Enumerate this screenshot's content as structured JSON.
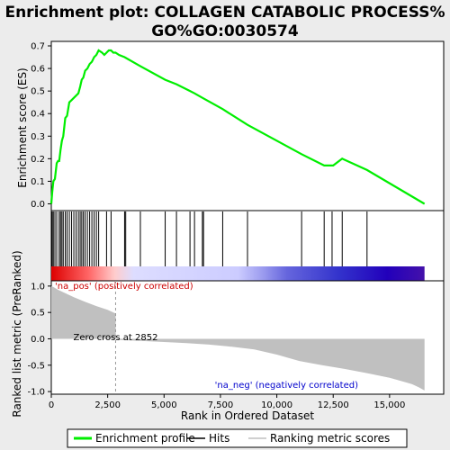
{
  "title_line1": "Enrichment plot: COLLAGEN CATABOLIC PROCESS%",
  "title_line2": "GO%GO:0030574",
  "colors": {
    "es_line": "#00ee00",
    "hit": "#000000",
    "metric_fill": "#c0c0c0",
    "pos_text": "#cc0000",
    "neg_text": "#0000cc",
    "zero_line": "#999999"
  },
  "chart_data": [
    {
      "type": "line",
      "name": "enrichment-score-panel",
      "ylabel": "Enrichment score (ES)",
      "xlim": [
        0,
        17400
      ],
      "ylim": [
        -0.03,
        0.72
      ],
      "yticks": [
        0.0,
        0.1,
        0.2,
        0.3,
        0.4,
        0.5,
        0.6,
        0.7
      ],
      "ytick_labels": [
        "0.0",
        "0.1",
        "0.2",
        "0.3",
        "0.4",
        "0.5",
        "0.6",
        "0.7"
      ],
      "grid": false,
      "series": [
        {
          "name": "Enrichment profile",
          "x": [
            0,
            40,
            90,
            160,
            240,
            300,
            350,
            410,
            470,
            530,
            620,
            700,
            800,
            900,
            1000,
            1100,
            1200,
            1280,
            1350,
            1420,
            1500,
            1600,
            1700,
            1800,
            1900,
            2000,
            2100,
            2250,
            2350,
            2450,
            2550,
            2650,
            2750,
            2850,
            3000,
            3250,
            3950,
            5050,
            5550,
            6150,
            6350,
            6700,
            7600,
            8700,
            11100,
            12100,
            12500,
            12900,
            14000,
            16550
          ],
          "y": [
            0.0,
            0.05,
            0.1,
            0.11,
            0.18,
            0.19,
            0.19,
            0.24,
            0.28,
            0.3,
            0.38,
            0.39,
            0.45,
            0.46,
            0.47,
            0.48,
            0.49,
            0.52,
            0.55,
            0.56,
            0.59,
            0.6,
            0.62,
            0.63,
            0.65,
            0.66,
            0.68,
            0.67,
            0.66,
            0.67,
            0.68,
            0.68,
            0.67,
            0.67,
            0.66,
            0.65,
            0.61,
            0.55,
            0.53,
            0.5,
            0.49,
            0.47,
            0.42,
            0.35,
            0.22,
            0.17,
            0.17,
            0.2,
            0.15,
            0.0
          ]
        }
      ]
    },
    {
      "type": "scatter",
      "name": "hits-panel",
      "series": [
        {
          "name": "Hits",
          "x": [
            40,
            90,
            160,
            240,
            350,
            410,
            470,
            530,
            620,
            700,
            800,
            900,
            1000,
            1100,
            1200,
            1280,
            1350,
            1420,
            1500,
            1600,
            1700,
            1800,
            1900,
            2000,
            2100,
            2450,
            2650,
            3250,
            3300,
            3950,
            5050,
            5550,
            6150,
            6350,
            6700,
            6750,
            7600,
            8700,
            11100,
            12100,
            12450,
            12900,
            14000
          ]
        }
      ]
    },
    {
      "type": "area",
      "name": "ranked-metric-panel",
      "xlabel": "Rank in Ordered Dataset",
      "ylabel": "Ranked list metric (PreRanked)",
      "xlim": [
        0,
        17400
      ],
      "ylim": [
        -1.05,
        1.1
      ],
      "yticks": [
        1.0,
        0.5,
        0.0,
        -0.5,
        -1.0
      ],
      "ytick_labels": [
        "1.0",
        "0.5",
        "0.0",
        "-0.5",
        "-1.0"
      ],
      "xticks": [
        0,
        2500,
        5000,
        7500,
        10000,
        12500,
        15000
      ],
      "xtick_labels": [
        "0",
        "2,500",
        "5,000",
        "7,500",
        "10,000",
        "12,500",
        "15,000"
      ],
      "series": [
        {
          "name": "Ranking metric scores",
          "x": [
            0,
            100,
            300,
            600,
            1000,
            1500,
            2000,
            2500,
            2852,
            2860,
            3500,
            5000,
            6000,
            7000,
            8000,
            9000,
            10000,
            11000,
            12000,
            13000,
            14000,
            15000,
            15500,
            16000,
            16300,
            16550
          ],
          "y": [
            1.0,
            0.98,
            0.93,
            0.87,
            0.79,
            0.7,
            0.62,
            0.55,
            0.48,
            -0.02,
            -0.03,
            -0.06,
            -0.08,
            -0.11,
            -0.15,
            -0.2,
            -0.3,
            -0.42,
            -0.5,
            -0.57,
            -0.65,
            -0.74,
            -0.8,
            -0.86,
            -0.92,
            -0.98
          ]
        }
      ],
      "zero_cross": 2852
    }
  ],
  "annotations": {
    "pos_label": "'na_pos' (positively correlated)",
    "neg_label": "'na_neg' (negatively correlated)",
    "zero_cross_label": "Zero cross at 2852"
  },
  "legend": {
    "placement": "bottom",
    "items": [
      {
        "label": "Enrichment profile",
        "color": "#00ee00"
      },
      {
        "label": "Hits",
        "color": "#000000"
      },
      {
        "label": "Ranking metric scores",
        "color": "#c0c0c0"
      }
    ]
  }
}
